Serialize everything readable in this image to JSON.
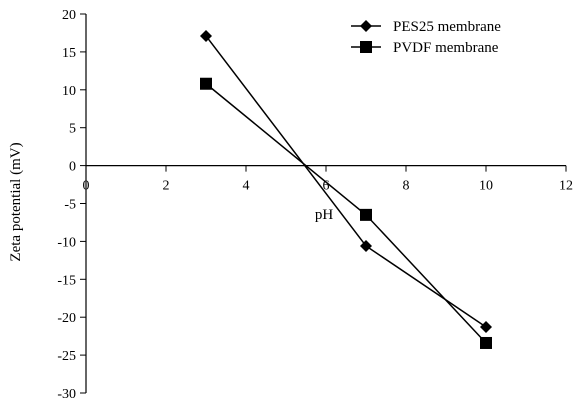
{
  "chart_data": {
    "type": "line",
    "title": "",
    "xlabel": "pH",
    "ylabel": "Zeta potential (mV)",
    "xlim": [
      0,
      12
    ],
    "ylim": [
      -30,
      20
    ],
    "x_ticks": [
      0,
      2,
      4,
      6,
      8,
      10,
      12
    ],
    "y_ticks": [
      20,
      15,
      10,
      5,
      0,
      -5,
      -10,
      -15,
      -20,
      -25,
      -30
    ],
    "grid": false,
    "legend_position": "top-right",
    "series": [
      {
        "name": "PES25 membrane",
        "marker": "diamond",
        "color": "#000000",
        "x": [
          3,
          7,
          10
        ],
        "y": [
          17.1,
          -10.6,
          -21.3
        ]
      },
      {
        "name": "PVDF membrane",
        "marker": "square",
        "color": "#000000",
        "x": [
          3,
          7,
          10
        ],
        "y": [
          10.8,
          -6.5,
          -23.4
        ]
      }
    ]
  }
}
